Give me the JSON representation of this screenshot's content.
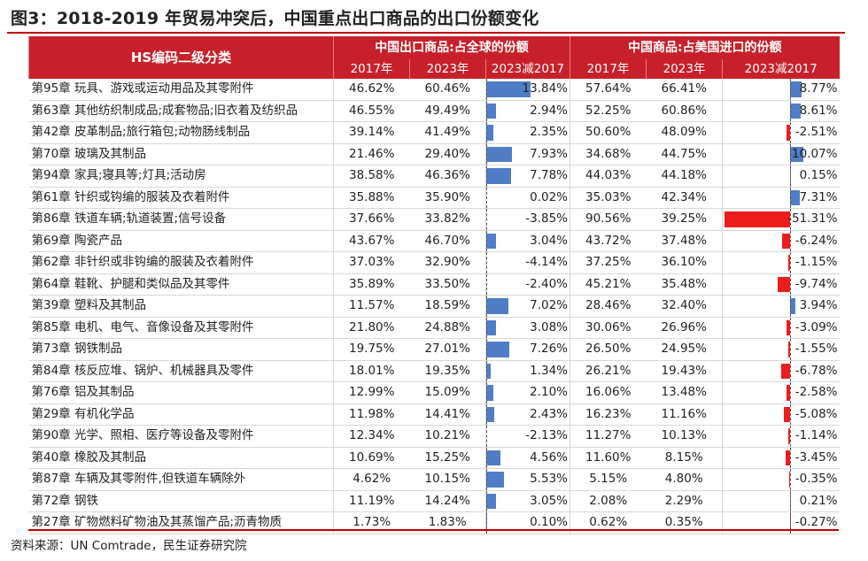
{
  "title": "图3：2018-2019 年贸易冲突后，中国重点出口商品的出口份额变化",
  "header": {
    "hs": "HS编码二级分类",
    "groupA": "中国出口商品:占全球的份额",
    "groupB": "中国商品:占美国进口的份额",
    "col2017": "2017年",
    "col2023": "2023年",
    "colDiff": "2023减2017"
  },
  "rows": [
    {
      "name": "第95章  玩具、游戏或运动用品及其零附件",
      "a17": "46.62%",
      "a23": "60.46%",
      "ad": "13.84%",
      "adv": 13.84,
      "b17": "57.64%",
      "b23": "66.41%",
      "bd": "8.77%",
      "bdv": 8.77
    },
    {
      "name": "第63章  其他纺织制成品;成套物品;旧衣着及纺织品",
      "a17": "46.55%",
      "a23": "49.49%",
      "ad": "2.94%",
      "adv": 2.94,
      "b17": "52.25%",
      "b23": "60.86%",
      "bd": "8.61%",
      "bdv": 8.61
    },
    {
      "name": "第42章  皮革制品;旅行箱包;动物肠线制品",
      "a17": "39.14%",
      "a23": "41.49%",
      "ad": "2.35%",
      "adv": 2.35,
      "b17": "50.60%",
      "b23": "48.09%",
      "bd": "-2.51%",
      "bdv": -2.51
    },
    {
      "name": "第70章  玻璃及其制品",
      "a17": "21.46%",
      "a23": "29.40%",
      "ad": "7.93%",
      "adv": 7.93,
      "b17": "34.68%",
      "b23": "44.75%",
      "bd": "10.07%",
      "bdv": 10.07
    },
    {
      "name": "第94章  家具;寝具等;灯具;活动房",
      "a17": "38.58%",
      "a23": "46.36%",
      "ad": "7.78%",
      "adv": 7.78,
      "b17": "44.03%",
      "b23": "44.18%",
      "bd": "0.15%",
      "bdv": 0.15
    },
    {
      "name": "第61章  针织或钩编的服装及衣着附件",
      "a17": "35.88%",
      "a23": "35.90%",
      "ad": "0.02%",
      "adv": 0.02,
      "b17": "35.03%",
      "b23": "42.34%",
      "bd": "7.31%",
      "bdv": 7.31
    },
    {
      "name": "第86章  铁道车辆;轨道装置;信号设备",
      "a17": "37.66%",
      "a23": "33.82%",
      "ad": "-3.85%",
      "adv": -3.85,
      "b17": "90.56%",
      "b23": "39.25%",
      "bd": "-51.31%",
      "bdv": -51.31
    },
    {
      "name": "第69章  陶瓷产品",
      "a17": "43.67%",
      "a23": "46.70%",
      "ad": "3.04%",
      "adv": 3.04,
      "b17": "43.72%",
      "b23": "37.48%",
      "bd": "-6.24%",
      "bdv": -6.24
    },
    {
      "name": "第62章  非针织或非钩编的服装及衣着附件",
      "a17": "37.03%",
      "a23": "32.90%",
      "ad": "-4.14%",
      "adv": -4.14,
      "b17": "37.25%",
      "b23": "36.10%",
      "bd": "-1.15%",
      "bdv": -1.15
    },
    {
      "name": "第64章  鞋靴、护腿和类似品及其零件",
      "a17": "35.89%",
      "a23": "33.50%",
      "ad": "-2.40%",
      "adv": -2.4,
      "b17": "45.21%",
      "b23": "35.48%",
      "bd": "-9.74%",
      "bdv": -9.74
    },
    {
      "name": "第39章  塑料及其制品",
      "a17": "11.57%",
      "a23": "18.59%",
      "ad": "7.02%",
      "adv": 7.02,
      "b17": "28.46%",
      "b23": "32.40%",
      "bd": "3.94%",
      "bdv": 3.94
    },
    {
      "name": "第85章  电机、电气、音像设备及其零附件",
      "a17": "21.80%",
      "a23": "24.88%",
      "ad": "3.08%",
      "adv": 3.08,
      "b17": "30.06%",
      "b23": "26.96%",
      "bd": "-3.09%",
      "bdv": -3.09
    },
    {
      "name": "第73章  钢铁制品",
      "a17": "19.75%",
      "a23": "27.01%",
      "ad": "7.26%",
      "adv": 7.26,
      "b17": "26.50%",
      "b23": "24.95%",
      "bd": "-1.55%",
      "bdv": -1.55
    },
    {
      "name": "第84章  核反应堆、锅炉、机械器具及零件",
      "a17": "18.01%",
      "a23": "19.35%",
      "ad": "1.34%",
      "adv": 1.34,
      "b17": "26.21%",
      "b23": "19.43%",
      "bd": "-6.78%",
      "bdv": -6.78
    },
    {
      "name": "第76章  铝及其制品",
      "a17": "12.99%",
      "a23": "15.09%",
      "ad": "2.10%",
      "adv": 2.1,
      "b17": "16.06%",
      "b23": "13.48%",
      "bd": "-2.58%",
      "bdv": -2.58
    },
    {
      "name": "第29章  有机化学品",
      "a17": "11.98%",
      "a23": "14.41%",
      "ad": "2.43%",
      "adv": 2.43,
      "b17": "16.23%",
      "b23": "11.16%",
      "bd": "-5.08%",
      "bdv": -5.08
    },
    {
      "name": "第90章  光学、照相、医疗等设备及零附件",
      "a17": "12.34%",
      "a23": "10.21%",
      "ad": "-2.13%",
      "adv": -2.13,
      "b17": "11.27%",
      "b23": "10.13%",
      "bd": "-1.14%",
      "bdv": -1.14
    },
    {
      "name": "第40章  橡胶及其制品",
      "a17": "10.69%",
      "a23": "15.25%",
      "ad": "4.56%",
      "adv": 4.56,
      "b17": "11.60%",
      "b23": "8.15%",
      "bd": "-3.45%",
      "bdv": -3.45
    },
    {
      "name": "第87章  车辆及其零附件,但铁道车辆除外",
      "a17": "4.62%",
      "a23": "10.15%",
      "ad": "5.53%",
      "adv": 5.53,
      "b17": "5.15%",
      "b23": "4.80%",
      "bd": "-0.35%",
      "bdv": -0.35
    },
    {
      "name": "第72章  钢铁",
      "a17": "11.19%",
      "a23": "14.24%",
      "ad": "3.05%",
      "adv": 3.05,
      "b17": "2.08%",
      "b23": "2.29%",
      "bd": "0.21%",
      "bdv": 0.21
    },
    {
      "name": "第27章  矿物燃料矿物油及其蒸馏产品;沥青物质",
      "a17": "1.73%",
      "a23": "1.83%",
      "ad": "0.10%",
      "adv": 0.1,
      "b17": "0.62%",
      "b23": "0.35%",
      "bd": "-0.27%",
      "bdv": -0.27
    }
  ],
  "source": "资料来源：UN Comtrade，民生证券研究院",
  "colors": {
    "header": "#c8202a",
    "positive": "#4f7ec6",
    "negative": "#ee1c1c",
    "rule": "#c00000"
  }
}
